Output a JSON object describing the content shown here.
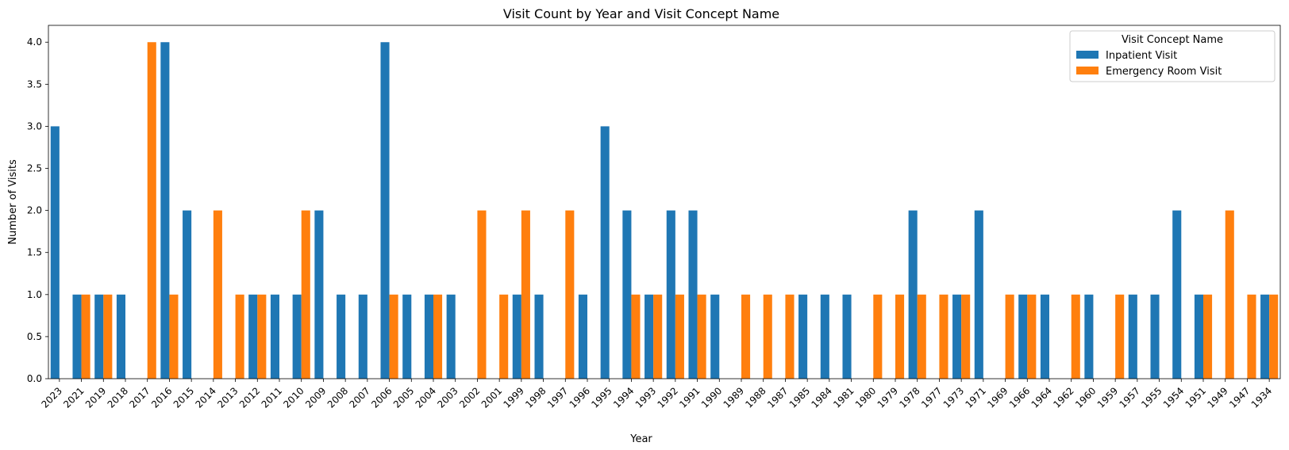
{
  "chart_data": {
    "type": "bar",
    "title": "Visit Count by Year and Visit Concept Name",
    "xlabel": "Year",
    "ylabel": "Number of Visits",
    "ylim": [
      0,
      4.2
    ],
    "yticks": [
      "0.0",
      "0.5",
      "1.0",
      "1.5",
      "2.0",
      "2.5",
      "3.0",
      "3.5",
      "4.0"
    ],
    "grid": false,
    "legend": {
      "title": "Visit Concept Name",
      "position": "top-right"
    },
    "categories": [
      "2023",
      "2021",
      "2019",
      "2018",
      "2017",
      "2016",
      "2015",
      "2014",
      "2013",
      "2012",
      "2011",
      "2010",
      "2009",
      "2008",
      "2007",
      "2006",
      "2005",
      "2004",
      "2003",
      "2002",
      "2001",
      "1999",
      "1998",
      "1997",
      "1996",
      "1995",
      "1994",
      "1993",
      "1992",
      "1991",
      "1990",
      "1989",
      "1988",
      "1987",
      "1985",
      "1984",
      "1981",
      "1980",
      "1979",
      "1978",
      "1977",
      "1973",
      "1971",
      "1969",
      "1966",
      "1964",
      "1962",
      "1960",
      "1959",
      "1957",
      "1955",
      "1954",
      "1951",
      "1949",
      "1947",
      "1934"
    ],
    "series": [
      {
        "name": "Inpatient Visit",
        "color": "#1f77b4",
        "values": [
          3,
          1,
          1,
          1,
          0,
          4,
          2,
          0,
          0,
          1,
          1,
          1,
          2,
          1,
          1,
          4,
          1,
          1,
          1,
          0,
          0,
          1,
          1,
          0,
          1,
          3,
          2,
          1,
          2,
          2,
          1,
          0,
          0,
          0,
          1,
          1,
          1,
          0,
          0,
          2,
          0,
          1,
          2,
          0,
          1,
          1,
          0,
          1,
          0,
          1,
          1,
          2,
          1,
          0,
          0,
          1
        ]
      },
      {
        "name": "Emergency Room Visit",
        "color": "#ff7f0e",
        "values": [
          0,
          1,
          1,
          0,
          4,
          1,
          0,
          2,
          1,
          1,
          0,
          2,
          0,
          0,
          0,
          1,
          0,
          1,
          0,
          2,
          1,
          2,
          0,
          2,
          0,
          0,
          1,
          1,
          1,
          1,
          0,
          1,
          1,
          1,
          0,
          0,
          0,
          1,
          1,
          1,
          1,
          1,
          0,
          1,
          1,
          0,
          1,
          0,
          1,
          0,
          0,
          0,
          1,
          2,
          1,
          1
        ]
      }
    ]
  }
}
